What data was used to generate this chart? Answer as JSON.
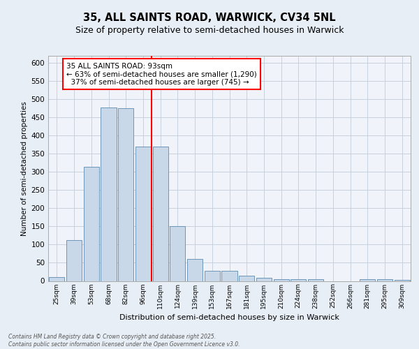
{
  "title_line1": "35, ALL SAINTS ROAD, WARWICK, CV34 5NL",
  "title_line2": "Size of property relative to semi-detached houses in Warwick",
  "xlabel": "Distribution of semi-detached houses by size in Warwick",
  "ylabel": "Number of semi-detached properties",
  "categories": [
    "25sqm",
    "39sqm",
    "53sqm",
    "68sqm",
    "82sqm",
    "96sqm",
    "110sqm",
    "124sqm",
    "139sqm",
    "153sqm",
    "167sqm",
    "181sqm",
    "195sqm",
    "210sqm",
    "224sqm",
    "238sqm",
    "252sqm",
    "266sqm",
    "281sqm",
    "295sqm",
    "309sqm"
  ],
  "values": [
    10,
    113,
    315,
    478,
    475,
    370,
    370,
    150,
    60,
    28,
    28,
    14,
    8,
    5,
    5,
    5,
    0,
    0,
    5,
    5,
    2
  ],
  "bar_color": "#c8d8e8",
  "bar_edge_color": "#5a8ab0",
  "vline_x": 5.5,
  "vline_color": "red",
  "annotation_text": "35 ALL SAINTS ROAD: 93sqm\n← 63% of semi-detached houses are smaller (1,290)\n  37% of semi-detached houses are larger (745) →",
  "annotation_box_color": "white",
  "annotation_box_edge": "red",
  "ylim": [
    0,
    620
  ],
  "yticks": [
    0,
    50,
    100,
    150,
    200,
    250,
    300,
    350,
    400,
    450,
    500,
    550,
    600
  ],
  "footer_text": "Contains HM Land Registry data © Crown copyright and database right 2025.\nContains public sector information licensed under the Open Government Licence v3.0.",
  "bg_color": "#e8eef5",
  "plot_bg_color": "#f0f4fa",
  "grid_color": "#c8d0dc"
}
